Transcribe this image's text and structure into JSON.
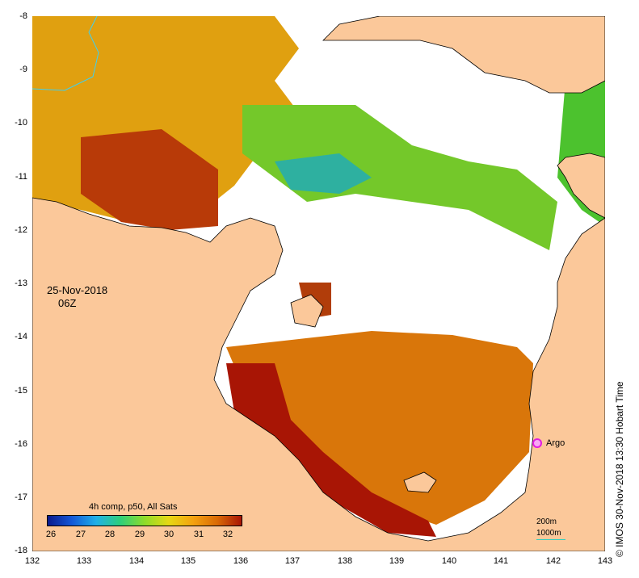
{
  "map": {
    "date": "25-Nov-2018",
    "time": "06Z",
    "lat_ticks": [
      "-8",
      "-9",
      "-10",
      "-11",
      "-12",
      "-13",
      "-14",
      "-15",
      "-16",
      "-17",
      "-18"
    ],
    "lon_ticks": [
      "132",
      "133",
      "134",
      "135",
      "136",
      "137",
      "138",
      "139",
      "140",
      "141",
      "142",
      "143"
    ],
    "land_color": "#fbc89a",
    "no_data_color": "#ffffff"
  },
  "colorbar": {
    "title": "4h comp, p50, All Sats",
    "ticks": [
      "26",
      "27",
      "28",
      "29",
      "30",
      "31",
      "32"
    ],
    "range": [
      25.7,
      32.3
    ]
  },
  "markers": {
    "argo_label": "Argo",
    "argo_color": "#e21de0"
  },
  "contours": {
    "shallow": "200m",
    "deep": "1000m"
  },
  "credit": "© IMOS 30-Nov-2018 13:30 Hobart Time"
}
